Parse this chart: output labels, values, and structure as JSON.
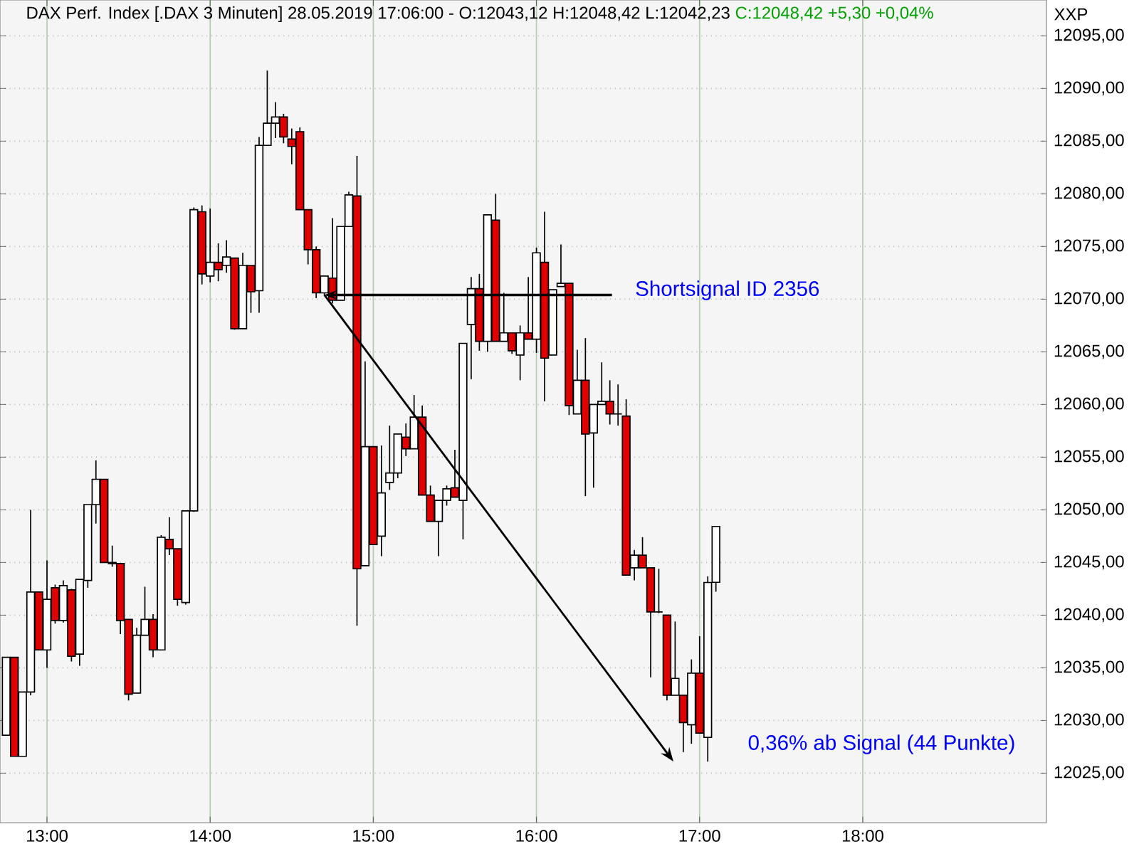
{
  "chart_data": {
    "type": "candlestick",
    "title": "DAX Perf. Index [.DAX  3 Minuten] 28.05.2019 17:06:00 - O:12043,12 H:12048,42 L:12042,23",
    "subtitle": "C:12048,42 +5,30 +0,04%",
    "ylabel": "XXP",
    "x": [
      12.75,
      12.8,
      12.85,
      12.9,
      12.95,
      13,
      13.05,
      13.1,
      13.15,
      13.2,
      13.25,
      13.3,
      13.35,
      13.4,
      13.45,
      13.5,
      13.55,
      13.6,
      13.65,
      13.7,
      13.75,
      13.8,
      13.85,
      13.9,
      13.95,
      14,
      14.05,
      14.1,
      14.15,
      14.2,
      14.25,
      14.3,
      14.35,
      14.4,
      14.45,
      14.5,
      14.55,
      14.6,
      14.65,
      14.7,
      14.75,
      14.8,
      14.85,
      14.9,
      14.95,
      15,
      15.05,
      15.1,
      15.15,
      15.2,
      15.25,
      15.3,
      15.35,
      15.4,
      15.45,
      15.5,
      15.55,
      15.6,
      15.65,
      15.7,
      15.75,
      15.8,
      15.85,
      15.9,
      15.95,
      16,
      16.05,
      16.1,
      16.15,
      16.2,
      16.25,
      16.3,
      16.35,
      16.4,
      16.45,
      16.5,
      16.55,
      16.6,
      16.65,
      16.7,
      16.75,
      16.8,
      16.85,
      16.9,
      16.95,
      17,
      17.05,
      17.1
    ],
    "ohlc": [
      [
        12028.6,
        12036.0,
        12028.6,
        12036.0
      ],
      [
        12036.0,
        12036.0,
        12026.6,
        12026.6
      ],
      [
        12026.6,
        12032.7,
        12026.6,
        12032.7
      ],
      [
        12032.7,
        12050.0,
        12032.4,
        12042.2
      ],
      [
        12042.2,
        12042.2,
        12036.7,
        12036.7
      ],
      [
        12036.7,
        12045.2,
        12035.0,
        12041.5
      ],
      [
        12042.6,
        12042.9,
        12039.2,
        12039.5
      ],
      [
        12039.5,
        12043.3,
        12039.3,
        12042.8
      ],
      [
        12042.4,
        12042.5,
        12035.6,
        12036.1
      ],
      [
        12036.3,
        12043.4,
        12035.2,
        12043.4
      ],
      [
        12043.3,
        12050.5,
        12042.6,
        12050.5
      ],
      [
        12050.5,
        12054.7,
        12048.7,
        12052.9
      ],
      [
        12052.9,
        12052.9,
        12045.0,
        12045.0
      ],
      [
        12044.9,
        12046.6,
        12044.6,
        12045.0
      ],
      [
        12044.9,
        12044.9,
        12038.2,
        12039.5
      ],
      [
        12039.6,
        12039.6,
        12031.9,
        12032.5
      ],
      [
        12032.6,
        12038.8,
        12032.6,
        12038.1
      ],
      [
        12038.1,
        12042.7,
        12038.1,
        12039.6
      ],
      [
        12039.6,
        12040.1,
        12036.0,
        12036.7
      ],
      [
        12036.7,
        12047.6,
        12036.7,
        12047.4
      ],
      [
        12047.2,
        12049.3,
        12045.7,
        12046.3
      ],
      [
        12046.3,
        12046.3,
        12040.9,
        12041.5
      ],
      [
        12041.2,
        12049.9,
        12041.0,
        12049.9
      ],
      [
        12049.9,
        12078.7,
        12049.8,
        12078.5
      ],
      [
        12078.3,
        12078.9,
        12071.4,
        12072.4
      ],
      [
        12072.2,
        12078.6,
        12071.6,
        12073.5
      ],
      [
        12073.5,
        12075.3,
        12071.7,
        12072.8
      ],
      [
        12073.2,
        12075.6,
        12072.5,
        12074.0
      ],
      [
        12073.9,
        12073.9,
        12067.1,
        12067.2
      ],
      [
        12067.2,
        12074.4,
        12067.2,
        12073.2
      ],
      [
        12073.2,
        12073.2,
        12068.7,
        12070.7
      ],
      [
        12070.8,
        12085.4,
        12068.7,
        12084.6
      ],
      [
        12084.6,
        12091.7,
        12084.6,
        12086.7
      ],
      [
        12086.7,
        12088.7,
        12085.3,
        12087.3
      ],
      [
        12087.3,
        12087.6,
        12084.8,
        12085.4
      ],
      [
        12085.2,
        12086.2,
        12082.8,
        12084.5
      ],
      [
        12085.9,
        12086.3,
        12078.5,
        12078.5
      ],
      [
        12078.5,
        12078.5,
        12073.3,
        12074.7
      ],
      [
        12074.7,
        12075.0,
        12070.1,
        12070.6
      ],
      [
        12070.6,
        12072.2,
        12070.4,
        12072.2
      ],
      [
        12072.0,
        12077.7,
        12069.6,
        12069.9
      ],
      [
        12069.9,
        12076.9,
        12069.9,
        12076.9
      ],
      [
        12076.9,
        12080.2,
        12076.9,
        12079.9
      ],
      [
        12079.8,
        12083.6,
        12039.0,
        12044.4
      ],
      [
        12044.7,
        12064.1,
        12044.7,
        12056.0
      ],
      [
        12056.0,
        12056.0,
        12046.7,
        12046.7
      ],
      [
        12047.5,
        12056.1,
        12045.6,
        12051.6
      ],
      [
        12052.6,
        12058.0,
        12051.9,
        12053.5
      ],
      [
        12053.5,
        12057.2,
        12053.0,
        12057.2
      ],
      [
        12056.9,
        12058.2,
        12055.1,
        12055.8
      ],
      [
        12055.8,
        12060.9,
        12055.8,
        12058.8
      ],
      [
        12058.8,
        12059.9,
        12051.4,
        12051.4
      ],
      [
        12051.4,
        12052.3,
        12048.9,
        12048.9
      ],
      [
        12048.9,
        12050.9,
        12045.6,
        12050.9
      ],
      [
        12050.9,
        12052.3,
        12050.4,
        12052.0
      ],
      [
        12052.1,
        12055.7,
        12051.2,
        12051.2
      ],
      [
        12050.9,
        12065.8,
        12047.2,
        12065.8
      ],
      [
        12067.6,
        12072.1,
        12062.4,
        12071.0
      ],
      [
        12071.0,
        12072.4,
        12065.1,
        12066.0
      ],
      [
        12066.0,
        12078.0,
        12065.0,
        12078.0
      ],
      [
        12077.5,
        12080.0,
        12066.0,
        12066.0
      ],
      [
        12066.0,
        12070.6,
        12066.0,
        12066.8
      ],
      [
        12066.8,
        12066.8,
        12064.8,
        12065.1
      ],
      [
        12064.7,
        12067.5,
        12062.3,
        12066.8
      ],
      [
        12066.8,
        12072.1,
        12066.2,
        12066.2
      ],
      [
        12066.2,
        12074.9,
        12064.9,
        12074.4
      ],
      [
        12073.5,
        12078.3,
        12060.3,
        12064.4
      ],
      [
        12064.7,
        12070.9,
        12064.7,
        12070.9
      ],
      [
        12071.2,
        12075.2,
        12071.2,
        12071.5
      ],
      [
        12071.5,
        12071.5,
        12059.0,
        12059.9
      ],
      [
        12059.1,
        12065.2,
        12059.1,
        12062.3
      ],
      [
        12062.3,
        12066.3,
        12051.3,
        12057.2
      ],
      [
        12057.3,
        12060.0,
        12052.1,
        12060.0
      ],
      [
        12060.0,
        12064.0,
        12060.0,
        12060.3
      ],
      [
        12060.3,
        12062.3,
        12058.1,
        12059.1
      ],
      [
        12059.1,
        12061.9,
        12058.0,
        12059.1
      ],
      [
        12058.9,
        12060.5,
        12043.8,
        12043.8
      ],
      [
        12044.5,
        12046.2,
        12043.3,
        12045.7
      ],
      [
        12045.7,
        12047.4,
        12044.5,
        12044.5
      ],
      [
        12044.5,
        12044.5,
        12034.1,
        12040.3
      ],
      [
        12040.3,
        12044.4,
        12040.2,
        12040.3
      ],
      [
        12040.0,
        12040.0,
        12031.9,
        12032.4
      ],
      [
        12032.4,
        12039.4,
        12032.4,
        12034.0
      ],
      [
        12032.4,
        12032.4,
        12027.0,
        12029.8
      ],
      [
        12029.6,
        12035.8,
        12027.8,
        12034.5
      ],
      [
        12034.5,
        12038.0,
        12028.8,
        12028.8
      ],
      [
        12028.4,
        12043.7,
        12026.1,
        12043.1
      ],
      [
        12043.12,
        12048.42,
        12042.23,
        12048.42
      ]
    ],
    "colors": [
      "#ffffff",
      "#e00000",
      "#ffffff",
      "#ffffff",
      "#e00000",
      "#ffffff",
      "#e00000",
      "#ffffff",
      "#e00000",
      "#ffffff",
      "#ffffff",
      "#ffffff",
      "#e00000",
      "#ffffff",
      "#e00000",
      "#e00000",
      "#ffffff",
      "#ffffff",
      "#e00000",
      "#ffffff",
      "#e00000",
      "#e00000",
      "#ffffff",
      "#ffffff",
      "#e00000",
      "#ffffff",
      "#e00000",
      "#ffffff",
      "#e00000",
      "#ffffff",
      "#e00000",
      "#ffffff",
      "#ffffff",
      "#ffffff",
      "#e00000",
      "#e00000",
      "#e00000",
      "#e00000",
      "#e00000",
      "#ffffff",
      "#e00000",
      "#ffffff",
      "#ffffff",
      "#e00000",
      "#ffffff",
      "#e00000",
      "#ffffff",
      "#ffffff",
      "#ffffff",
      "#e00000",
      "#ffffff",
      "#e00000",
      "#e00000",
      "#ffffff",
      "#ffffff",
      "#e00000",
      "#ffffff",
      "#ffffff",
      "#e00000",
      "#ffffff",
      "#e00000",
      "#ffffff",
      "#e00000",
      "#ffffff",
      "#e00000",
      "#ffffff",
      "#e00000",
      "#ffffff",
      "#ffffff",
      "#e00000",
      "#ffffff",
      "#e00000",
      "#ffffff",
      "#ffffff",
      "#e00000",
      "#000000",
      "#e00000",
      "#ffffff",
      "#e00000",
      "#e00000",
      "#000000",
      "#e00000",
      "#ffffff",
      "#e00000",
      "#ffffff",
      "#e00000",
      "#ffffff",
      "#ffffff"
    ],
    "xlim": [
      12.712,
      19.126
    ],
    "ylim": [
      12020.3,
      12098.4
    ],
    "xticks": [
      {
        "value": 13,
        "label": "13:00"
      },
      {
        "value": 14,
        "label": "14:00"
      },
      {
        "value": 15,
        "label": "15:00"
      },
      {
        "value": 16,
        "label": "16:00"
      },
      {
        "value": 17,
        "label": "17:00"
      },
      {
        "value": 18,
        "label": "18:00"
      }
    ],
    "yticks": [
      {
        "value": 12025,
        "label": "12025,00"
      },
      {
        "value": 12030,
        "label": "12030,00"
      },
      {
        "value": 12035,
        "label": "12035,00"
      },
      {
        "value": 12040,
        "label": "12040,00"
      },
      {
        "value": 12045,
        "label": "12045,00"
      },
      {
        "value": 12050,
        "label": "12050,00"
      },
      {
        "value": 12055,
        "label": "12055,00"
      },
      {
        "value": 12060,
        "label": "12060,00"
      },
      {
        "value": 12065,
        "label": "12065,00"
      },
      {
        "value": 12070,
        "label": "12070,00"
      },
      {
        "value": 12075,
        "label": "12075,00"
      },
      {
        "value": 12080,
        "label": "12080,00"
      },
      {
        "value": 12085,
        "label": "12085,00"
      },
      {
        "value": 12090,
        "label": "12090,00"
      },
      {
        "value": 12095,
        "label": "12095,00"
      }
    ],
    "grid": true,
    "annotations": [
      {
        "text": "Shortsignal ID 2356",
        "x": 14.7,
        "y": 12070.4
      },
      "0,36% ab Signal (44 Punkte)"
    ]
  }
}
